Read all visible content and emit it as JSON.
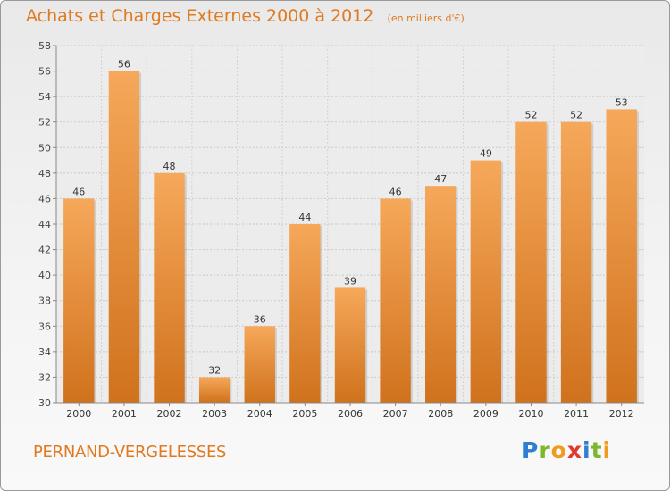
{
  "title": "Achats et Charges Externes 2000 à 2012",
  "unit": "(en milliers d'€)",
  "commune": "PERNAND-VERGELESSES",
  "logo": {
    "letters": [
      "P",
      "r",
      "o",
      "x",
      "i",
      "t",
      "i"
    ],
    "colors": [
      "#2f7fd0",
      "#7cb82f",
      "#f29a1e",
      "#e03a2e",
      "#2f7fd0",
      "#7cb82f",
      "#f29a1e"
    ]
  },
  "colors": {
    "bar_top": "#f6a85a",
    "bar_bottom": "#d0721d",
    "text_accent": "#e07a20"
  },
  "chart_data": {
    "type": "bar",
    "categories": [
      "2000",
      "2001",
      "2002",
      "2003",
      "2004",
      "2005",
      "2006",
      "2007",
      "2008",
      "2009",
      "2010",
      "2011",
      "2012"
    ],
    "values": [
      46,
      56,
      48,
      32,
      36,
      44,
      39,
      46,
      47,
      49,
      52,
      52,
      53
    ],
    "ylim": [
      30,
      58
    ],
    "yticks": [
      30,
      32,
      34,
      36,
      38,
      40,
      42,
      44,
      46,
      48,
      50,
      52,
      54,
      56,
      58
    ],
    "grid": true
  }
}
